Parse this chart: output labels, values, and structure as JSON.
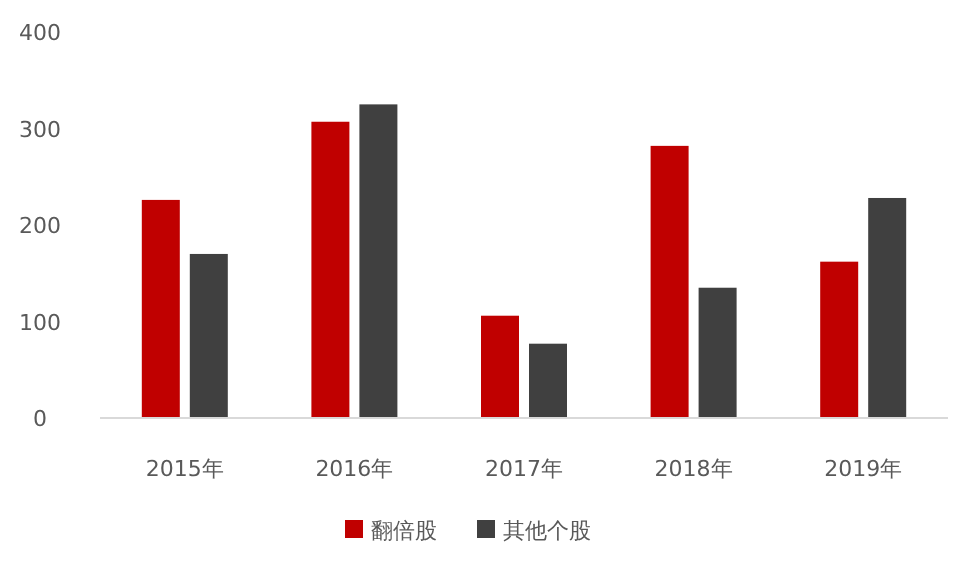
{
  "chart_data": {
    "type": "bar",
    "categories": [
      "2015年",
      "2016年",
      "2017年",
      "2018年",
      "2019年"
    ],
    "series": [
      {
        "name": "翻倍股",
        "color": "#c00000",
        "values": [
          226,
          307,
          106,
          282,
          162
        ]
      },
      {
        "name": "其他个股",
        "color": "#404040",
        "values": [
          170,
          325,
          77,
          135,
          228
        ]
      }
    ],
    "ylim": [
      0,
      400
    ],
    "yticks": [
      0,
      100,
      200,
      300,
      400
    ],
    "legend": "bottom"
  }
}
